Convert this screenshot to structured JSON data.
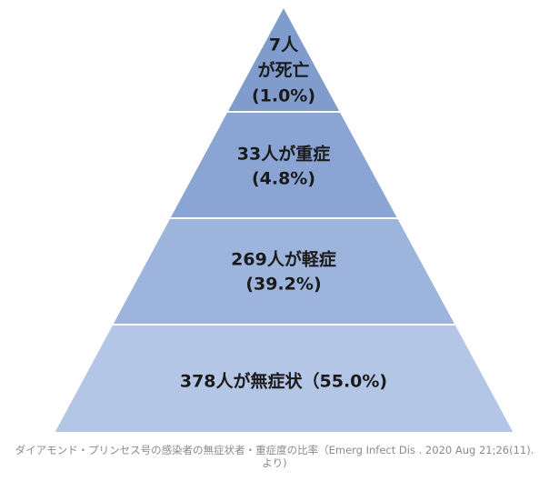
{
  "diagram": {
    "tiers": [
      {
        "lines": [
          "7人",
          "が死亡",
          "(1.0%)"
        ],
        "color": "#7f9ccc"
      },
      {
        "lines": [
          "33人が重症",
          "(4.8%)"
        ],
        "color": "#8aa5d3"
      },
      {
        "lines": [
          "269人が軽症",
          "(39.2%)"
        ],
        "color": "#9db5dd"
      },
      {
        "lines": [
          "378人が無症状（55.0%)"
        ],
        "color": "#b4c6e6"
      }
    ]
  },
  "caption": {
    "line1": "ダイアモンド・プリンセス号の感染者の無症状者・重症度の比率（Emerg Infect Dis . 2020 Aug 21;26(11).",
    "line2": "より)"
  }
}
